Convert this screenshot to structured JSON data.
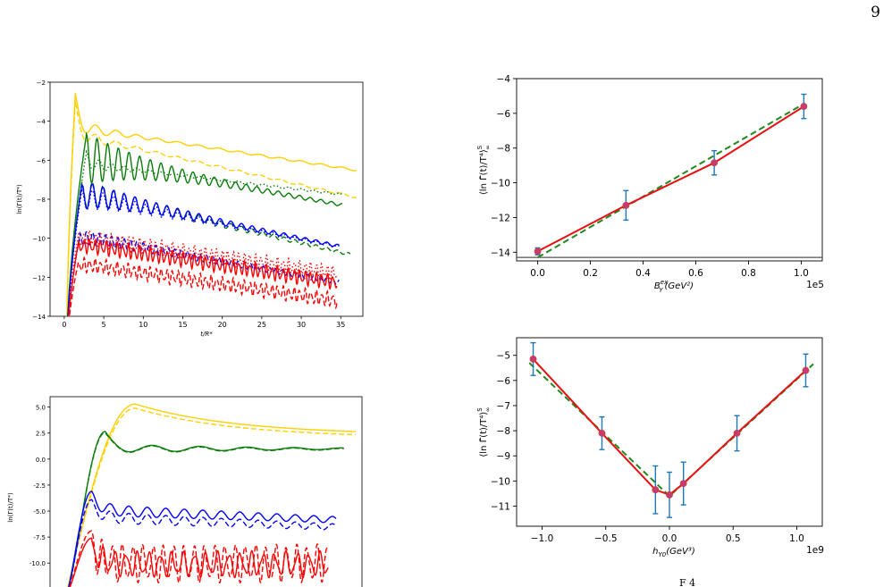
{
  "page_number": "9",
  "footer_fragment": "F     4",
  "chart_data": [
    {
      "type": "line",
      "ylabel": "ln(Γ(t)/T⁴)",
      "xlabel": "t/R*",
      "xlim": [
        -1.8,
        37.8
      ],
      "ylim": [
        -14,
        -2
      ],
      "xticks": [
        0,
        5,
        10,
        15,
        20,
        25,
        30,
        35
      ],
      "yticks": [
        -2,
        -4,
        -6,
        -8,
        -10,
        -12,
        -14
      ],
      "colors": {
        "gold": "#ffd000",
        "green": "#0a7d0a",
        "blue": "#0000ff",
        "red": "#ff0000"
      },
      "series": [
        {
          "color": "gold",
          "style": "solid",
          "t_end": 37,
          "peak_t": 1.4,
          "peak": -2.6,
          "offset": -4.3,
          "amp": 0.42,
          "period": 2.6,
          "decay": 0.28,
          "slope": 0.062
        },
        {
          "color": "gold",
          "style": "dashed",
          "t_end": 37,
          "peak_t": 1.4,
          "peak": -3.0,
          "offset": -4.7,
          "amp": 0.4,
          "period": 2.6,
          "decay": 0.28,
          "slope": 0.09
        },
        {
          "color": "green",
          "style": "dotted",
          "t_end": 35.2,
          "peak_t": 2.8,
          "peak": -5.6,
          "offset": -6.2,
          "amp": 0.35,
          "period": 1.6,
          "decay": 0.3,
          "slope": 0.048
        },
        {
          "color": "green",
          "style": "solid",
          "t_end": 35.2,
          "peak_t": 2.8,
          "peak": -4.7,
          "offset": -5.9,
          "amp": 1.25,
          "period": 1.35,
          "decay": 0.12,
          "slope": 0.074
        },
        {
          "color": "green",
          "style": "dashed",
          "t_end": 36.2,
          "peak_t": 2.2,
          "peak": -7.2,
          "offset": -7.6,
          "amp": 0.65,
          "period": 1.35,
          "decay": 0.1,
          "slope": 0.095
        },
        {
          "color": "blue",
          "style": "solid",
          "t_end": 34.8,
          "peak_t": 2.2,
          "peak": -7.3,
          "offset": -7.7,
          "amp": 0.65,
          "period": 1.35,
          "decay": 0.1,
          "slope": 0.083
        },
        {
          "color": "blue",
          "style": "dotted",
          "t_end": 34.8,
          "peak_t": 2.2,
          "peak": -7.6,
          "offset": -7.9,
          "amp": 0.5,
          "period": 1.35,
          "decay": 0.1,
          "slope": 0.078
        },
        {
          "color": "blue",
          "style": "dashed",
          "t_end": 34.8,
          "peak_t": 2.0,
          "peak": -9.8,
          "offset": -9.9,
          "amp": 0.3,
          "period": 0.8,
          "decay": 0.05,
          "slope": 0.072
        },
        {
          "color": "red",
          "style": "dotted",
          "t_end": 34.5,
          "peak_t": 1.8,
          "peak": -9.8,
          "offset": -9.9,
          "amp": 0.25,
          "period": 0.7,
          "decay": 0.0,
          "slope": 0.058
        },
        {
          "color": "red",
          "style": "solid",
          "t_end": 34.5,
          "peak_t": 1.8,
          "peak": -10.2,
          "offset": -10.3,
          "amp": 0.25,
          "period": 0.7,
          "decay": 0.0,
          "slope": 0.06
        },
        {
          "color": "red",
          "style": "dashed",
          "t_end": 34.5,
          "peak_t": 1.8,
          "peak": -11.2,
          "offset": -11.3,
          "amp": 0.25,
          "period": 0.7,
          "decay": 0.0,
          "slope": 0.058
        }
      ]
    },
    {
      "type": "scatter",
      "ylabel": "⟨ln Γ̄(t)/T⁴⟩",
      "ylabel_sub": "∞",
      "ylabel_sup": "S",
      "xlabel": "B",
      "xlabel_sub": "Y",
      "xlabel_sup": "ex",
      "xlabel_rest": "(GeV²)",
      "offset_label": "1e5",
      "xlim": [
        -0.08,
        1.08
      ],
      "ylim": [
        -14.5,
        -4
      ],
      "xticks": [
        0.0,
        0.2,
        0.4,
        0.6,
        0.8,
        1.0
      ],
      "yticks": [
        -4,
        -6,
        -8,
        -10,
        -12,
        -14
      ],
      "xtick_labels": [
        "0.0",
        "0.2",
        "0.4",
        "0.6",
        "0.8",
        "1.0"
      ],
      "ytick_labels": [
        "−4",
        "−6",
        "−8",
        "−10",
        "−12",
        "−14"
      ],
      "hline": -14.3,
      "points": [
        {
          "x": 0.0,
          "y": -13.95,
          "err": 0.2
        },
        {
          "x": 0.335,
          "y": -11.3,
          "err": 0.85
        },
        {
          "x": 0.67,
          "y": -8.85,
          "err": 0.7
        },
        {
          "x": 1.01,
          "y": -5.6,
          "err": 0.7
        }
      ],
      "red_line": [
        [
          0.0,
          -13.95
        ],
        [
          0.335,
          -11.3
        ],
        [
          0.67,
          -8.85
        ],
        [
          1.01,
          -5.6
        ]
      ],
      "green_line": [
        [
          0.0,
          -14.3
        ],
        [
          1.01,
          -5.45
        ]
      ]
    },
    {
      "type": "line",
      "ylabel": "ln(Γ(t)/T⁴)",
      "xlim": [
        -1.8,
        37.8
      ],
      "ylim": [
        -12.3,
        6
      ],
      "yticks": [
        5.0,
        2.5,
        0.0,
        -2.5,
        -5.0,
        -7.5,
        -10.0
      ],
      "ytick_labels": [
        "5.0",
        "2.5",
        "0.0",
        "-2.5",
        "-5.0",
        "-7.5",
        "-10.0"
      ],
      "series": [
        {
          "color": "gold",
          "style": "solid",
          "t_end": 37,
          "kind": "smooth",
          "peak": 5.3,
          "end": 2.65
        },
        {
          "color": "gold",
          "style": "dashed",
          "t_end": 37,
          "kind": "smooth",
          "peak": 4.9,
          "end": 2.35
        },
        {
          "color": "green",
          "style": "solid",
          "t_end": 35.5,
          "kind": "wave",
          "peak": 2.65,
          "level": 1.0,
          "amp": 0.45,
          "period": 6.0,
          "decay": 0.06,
          "drift": 0.0
        },
        {
          "color": "green",
          "style": "dashed",
          "t_end": 35.5,
          "kind": "wave",
          "peak": 2.55,
          "level": 0.95,
          "amp": 0.45,
          "period": 6.0,
          "decay": 0.06,
          "drift": 0.0
        },
        {
          "color": "blue",
          "style": "solid",
          "t_end": 34.5,
          "kind": "wave",
          "peak": -3.1,
          "level": -4.9,
          "amp": 0.55,
          "period": 2.35,
          "decay": 0.02,
          "drift": 0.03
        },
        {
          "color": "blue",
          "style": "dashed",
          "t_end": 34.5,
          "kind": "wave",
          "peak": -3.9,
          "level": -5.6,
          "amp": 0.55,
          "period": 2.35,
          "decay": 0.02,
          "drift": 0.03
        },
        {
          "color": "red",
          "style": "solid",
          "t_end": 33.5,
          "kind": "wave",
          "peak": -7.6,
          "level": -10.1,
          "amp": 1.0,
          "period": 1.45,
          "decay": 0.0,
          "drift": 0.0
        },
        {
          "color": "red",
          "style": "dashed",
          "t_end": 33.5,
          "kind": "wave",
          "peak": -6.9,
          "level": -10.0,
          "amp": 1.6,
          "period": 1.3,
          "decay": 0.0,
          "drift": 0.0
        }
      ]
    },
    {
      "type": "scatter",
      "ylabel": "⟨ln Γ̄(t)/T⁴⟩",
      "ylabel_sub": "∞",
      "ylabel_sup": "S",
      "xlabel": "h",
      "xlabel_sub": "Y0",
      "xlabel_rest": "(GeV³)",
      "offset_label": "1e9",
      "xlim": [
        -1.2,
        1.2
      ],
      "ylim": [
        -11.8,
        -4.3
      ],
      "xticks": [
        -1.0,
        -0.5,
        0.0,
        0.5,
        1.0
      ],
      "yticks": [
        -5,
        -6,
        -7,
        -8,
        -9,
        -10,
        -11
      ],
      "xtick_labels": [
        "−1.0",
        "−0.5",
        "0.0",
        "0.5",
        "1.0"
      ],
      "ytick_labels": [
        "−5",
        "−6",
        "−7",
        "−8",
        "−9",
        "−10",
        "−11"
      ],
      "points": [
        {
          "x": -1.07,
          "y": -5.15,
          "err": 0.65
        },
        {
          "x": -0.53,
          "y": -8.1,
          "err": 0.65
        },
        {
          "x": -0.11,
          "y": -10.35,
          "err": 0.95
        },
        {
          "x": 0.0,
          "y": -10.55,
          "err": 0.9
        },
        {
          "x": 0.11,
          "y": -10.1,
          "err": 0.85
        },
        {
          "x": 0.53,
          "y": -8.1,
          "err": 0.7
        },
        {
          "x": 1.07,
          "y": -5.6,
          "err": 0.65
        }
      ],
      "red_line": [
        [
          -1.07,
          -5.15
        ],
        [
          -0.53,
          -8.1
        ],
        [
          -0.11,
          -10.35
        ],
        [
          0.0,
          -10.55
        ],
        [
          0.11,
          -10.1
        ],
        [
          0.53,
          -8.1
        ],
        [
          1.07,
          -5.6
        ]
      ],
      "green_line": [
        [
          -1.1,
          -5.3
        ],
        [
          0.0,
          -10.6
        ],
        [
          1.13,
          -5.35
        ]
      ]
    }
  ]
}
